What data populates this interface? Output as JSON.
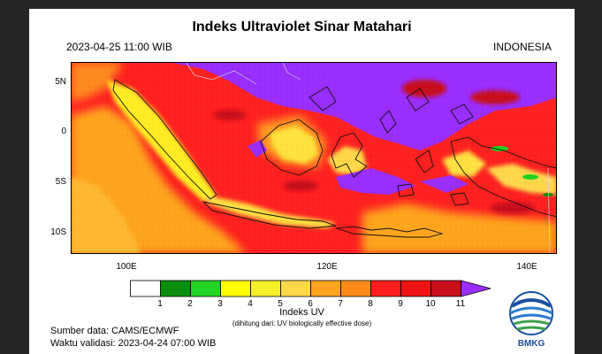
{
  "map": {
    "title": "Indeks Ultraviolet Sinar Matahari",
    "datetime": "2023-04-25   11:00 WIB",
    "region": "INDONESIA",
    "lat_labels": [
      "5N",
      "0",
      "5S",
      "10S"
    ],
    "lon_labels": [
      "100E",
      "120E",
      "140E"
    ]
  },
  "colorbar": {
    "label": "Indeks UV",
    "note": "(dihitung dari: UV biologically effective dose)",
    "ticks": [
      "1",
      "2",
      "3",
      "4",
      "5",
      "6",
      "7",
      "8",
      "9",
      "10",
      "11"
    ],
    "colors": [
      "#ffffff",
      "#0a8f0a",
      "#21d421",
      "#ffff00",
      "#f7ef28",
      "#ffd84a",
      "#ffa41e",
      "#ff8a1a",
      "#ff1c1c",
      "#ee1414",
      "#c80f1a",
      "#9a2dff"
    ]
  },
  "footer": {
    "source": "Sumber data: CAMS/ECMWF",
    "validity": "Waktu validasi: 2023-04-24 07:00 WIB",
    "logo_text": "BMKG"
  }
}
